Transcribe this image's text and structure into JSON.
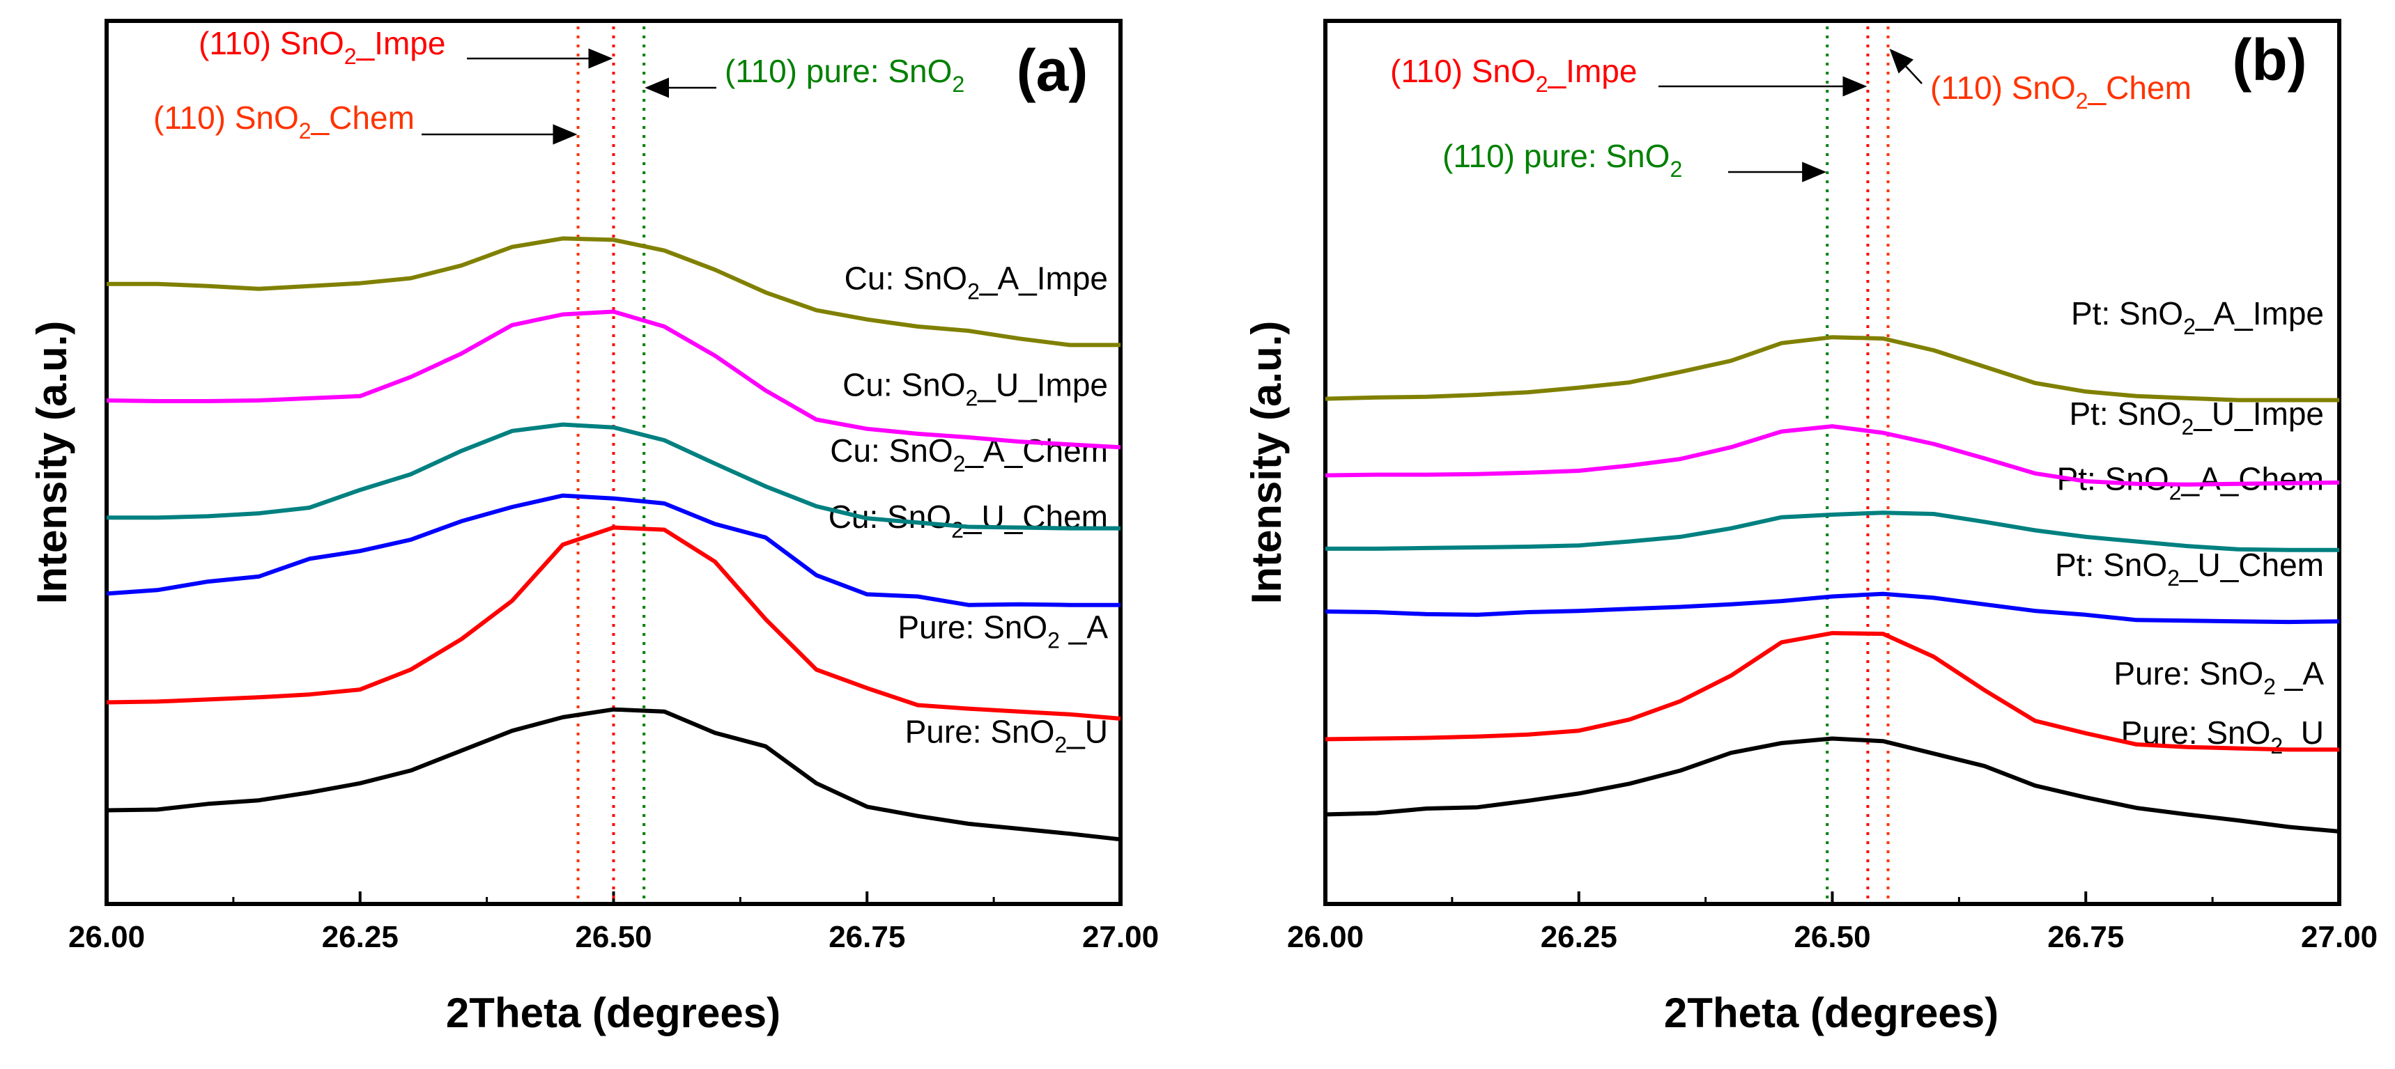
{
  "chart_data": [
    {
      "type": "line",
      "panel_label": "(a)",
      "xlabel": "2Theta (degrees)",
      "ylabel": "Intensity (a.u.)",
      "xlim": [
        26.0,
        27.0
      ],
      "ylim": [
        0,
        100
      ],
      "xticks": [
        26.0,
        26.25,
        26.5,
        26.75,
        27.0
      ],
      "xtick_labels": [
        "26.00",
        "26.25",
        "26.50",
        "26.75",
        "27.00"
      ],
      "y_tick_labels_shown": false,
      "x": [
        26.0,
        26.05,
        26.1,
        26.15,
        26.2,
        26.25,
        26.3,
        26.35,
        26.4,
        26.45,
        26.5,
        26.55,
        26.6,
        26.65,
        26.7,
        26.75,
        26.8,
        26.85,
        26.9,
        26.95,
        27.0
      ],
      "series": [
        {
          "name": "Pure: SnO2_U",
          "label_main": "Pure: SnO",
          "label_sub": "2",
          "label_tail": "_U",
          "color": "#000000",
          "values": [
            7.5,
            7.6,
            8.4,
            8.9,
            10.0,
            11.3,
            13.1,
            15.9,
            18.7,
            20.6,
            21.7,
            21.4,
            18.4,
            16.5,
            11.3,
            8.0,
            6.7,
            5.6,
            4.9,
            4.2,
            3.4
          ]
        },
        {
          "name": "Pure: SnO2 _A",
          "label_main": "Pure: SnO",
          "label_sub": "2",
          "label_tail": " _A",
          "color": "#ff0000",
          "values": [
            22.7,
            22.8,
            23.1,
            23.4,
            23.8,
            24.5,
            27.3,
            31.6,
            37.0,
            44.9,
            47.3,
            47.0,
            42.5,
            34.4,
            27.3,
            24.7,
            22.3,
            21.8,
            21.4,
            21.0,
            20.4
          ]
        },
        {
          "name": "Cu: SnO2_U_Chem",
          "label_main": "Cu: SnO",
          "label_sub": "2",
          "label_tail": "_U_Chem",
          "color": "#0000ff",
          "values": [
            38.0,
            38.5,
            39.7,
            40.4,
            42.9,
            44.0,
            45.6,
            48.2,
            50.2,
            51.8,
            51.4,
            50.7,
            47.8,
            45.9,
            40.6,
            37.9,
            37.6,
            36.4,
            36.5,
            36.4,
            36.4
          ]
        },
        {
          "name": "Cu: SnO2_A_Chem",
          "label_main": "Cu: SnO",
          "label_sub": "2",
          "label_tail": "_A_Chem",
          "color": "#008080",
          "values": [
            48.7,
            48.7,
            48.9,
            49.3,
            50.1,
            52.6,
            54.8,
            58.1,
            60.9,
            61.8,
            61.4,
            59.6,
            56.3,
            53.1,
            50.3,
            48.6,
            48.0,
            47.4,
            47.3,
            47.2,
            47.2
          ]
        },
        {
          "name": "Cu: SnO2_U_Impe",
          "label_main": "Cu: SnO",
          "label_sub": "2",
          "label_tail": "_U_Impe",
          "color": "#ff00ff",
          "values": [
            65.2,
            65.1,
            65.1,
            65.2,
            65.5,
            65.8,
            68.5,
            71.8,
            75.8,
            77.3,
            77.7,
            75.6,
            71.5,
            66.6,
            62.5,
            61.2,
            60.5,
            60.0,
            59.4,
            59.0,
            58.6
          ]
        },
        {
          "name": "Cu: SnO2_A_Impe",
          "label_main": "Cu: SnO",
          "label_sub": "2",
          "label_tail": "_A_Impe",
          "color": "#808000",
          "values": [
            81.6,
            81.6,
            81.3,
            80.9,
            81.3,
            81.7,
            82.4,
            84.2,
            86.8,
            88.0,
            87.8,
            86.3,
            83.6,
            80.4,
            77.9,
            76.6,
            75.6,
            75.0,
            73.9,
            73.0,
            73.0
          ]
        }
      ],
      "reference_lines": [
        {
          "x": 26.465,
          "color": "#ff3300",
          "label_main": "(110) SnO",
          "label_sub": "2",
          "label_tail": "_Chem",
          "arrow_from": "left"
        },
        {
          "x": 26.5,
          "color": "#ff0000",
          "label_main": "(110) SnO",
          "label_sub": "2",
          "label_tail": "_Impe",
          "arrow_from": "left"
        },
        {
          "x": 26.53,
          "color": "#008000",
          "label_main": "(110) pure: SnO",
          "label_sub": "2",
          "label_tail": "",
          "arrow_from": "right"
        }
      ]
    },
    {
      "type": "line",
      "panel_label": "(b)",
      "xlabel": "2Theta (degrees)",
      "ylabel": "Intensity (a.u.)",
      "xlim": [
        26.0,
        27.0
      ],
      "ylim": [
        0,
        100
      ],
      "xticks": [
        26.0,
        26.25,
        26.5,
        26.75,
        27.0
      ],
      "xtick_labels": [
        "26.00",
        "26.25",
        "26.50",
        "26.75",
        "27.00"
      ],
      "y_tick_labels_shown": false,
      "x": [
        26.0,
        26.05,
        26.1,
        26.15,
        26.2,
        26.25,
        26.3,
        26.35,
        26.4,
        26.45,
        26.5,
        26.55,
        26.6,
        26.65,
        26.7,
        26.75,
        26.8,
        26.85,
        26.9,
        26.95,
        27.0
      ],
      "series": [
        {
          "name": "Pure: SnO2_U",
          "label_main": "Pure: SnO",
          "label_sub": "2",
          "label_tail": "_U",
          "color": "#000000",
          "values": [
            7.5,
            7.7,
            8.4,
            8.6,
            9.6,
            10.7,
            12.2,
            14.2,
            16.9,
            18.4,
            19.1,
            18.7,
            16.8,
            14.9,
            11.9,
            10.1,
            8.5,
            7.5,
            6.6,
            5.6,
            4.9
          ]
        },
        {
          "name": "Pure: SnO2 _A",
          "label_main": "Pure: SnO",
          "label_sub": "2",
          "label_tail": " _A",
          "color": "#ff0000",
          "values": [
            19.0,
            19.1,
            19.2,
            19.4,
            19.7,
            20.3,
            22.0,
            24.8,
            28.7,
            33.8,
            35.2,
            35.1,
            31.6,
            26.5,
            21.8,
            19.9,
            18.2,
            17.8,
            17.6,
            17.4,
            17.4
          ]
        },
        {
          "name": "Pt: SnO2_U_Chem",
          "label_main": "Pt: SnO",
          "label_sub": "2",
          "label_tail": "_U_Chem",
          "color": "#0000ff",
          "values": [
            38.5,
            38.4,
            38.1,
            38.0,
            38.4,
            38.6,
            38.9,
            39.2,
            39.6,
            40.1,
            40.8,
            41.2,
            40.6,
            39.6,
            38.6,
            38.0,
            37.2,
            37.1,
            37.0,
            36.9,
            37.0
          ]
        },
        {
          "name": "Pt: SnO2_A_Chem",
          "label_main": "Pt: SnO",
          "label_sub": "2",
          "label_tail": "_A_Chem",
          "color": "#008080",
          "values": [
            48.1,
            48.1,
            48.2,
            48.3,
            48.4,
            48.6,
            49.2,
            49.9,
            51.2,
            52.9,
            53.3,
            53.6,
            53.4,
            52.2,
            50.9,
            49.9,
            49.2,
            48.5,
            48.0,
            47.9,
            47.9
          ]
        },
        {
          "name": "Pt: SnO2_U_Impe",
          "label_main": "Pt: SnO",
          "label_sub": "2",
          "label_tail": "_U_Impe",
          "color": "#ff00ff",
          "values": [
            59.3,
            59.4,
            59.4,
            59.5,
            59.7,
            60.0,
            60.8,
            61.8,
            63.6,
            66.0,
            66.8,
            65.8,
            64.1,
            61.9,
            59.6,
            58.4,
            58.0,
            57.9,
            58.0,
            58.1,
            58.2
          ]
        },
        {
          "name": "Pt: SnO2_A_Impe",
          "label_main": "Pt: SnO",
          "label_sub": "2",
          "label_tail": "_A_Impe",
          "color": "#808000",
          "values": [
            71.0,
            71.2,
            71.3,
            71.6,
            72.0,
            72.7,
            73.5,
            75.1,
            76.8,
            79.5,
            80.4,
            80.2,
            78.4,
            75.9,
            73.4,
            72.1,
            71.4,
            71.1,
            70.8,
            70.8,
            70.8
          ]
        }
      ],
      "reference_lines": [
        {
          "x": 26.495,
          "color": "#008000",
          "label_main": "(110) pure: SnO",
          "label_sub": "2",
          "label_tail": "",
          "arrow_from": "left"
        },
        {
          "x": 26.535,
          "color": "#ff0000",
          "label_main": "(110) SnO",
          "label_sub": "2",
          "label_tail": "_Impe",
          "arrow_from": "left"
        },
        {
          "x": 26.555,
          "color": "#ff3300",
          "label_main": "(110) SnO",
          "label_sub": "2",
          "label_tail": "_Chem",
          "arrow_from": "right"
        }
      ]
    }
  ]
}
